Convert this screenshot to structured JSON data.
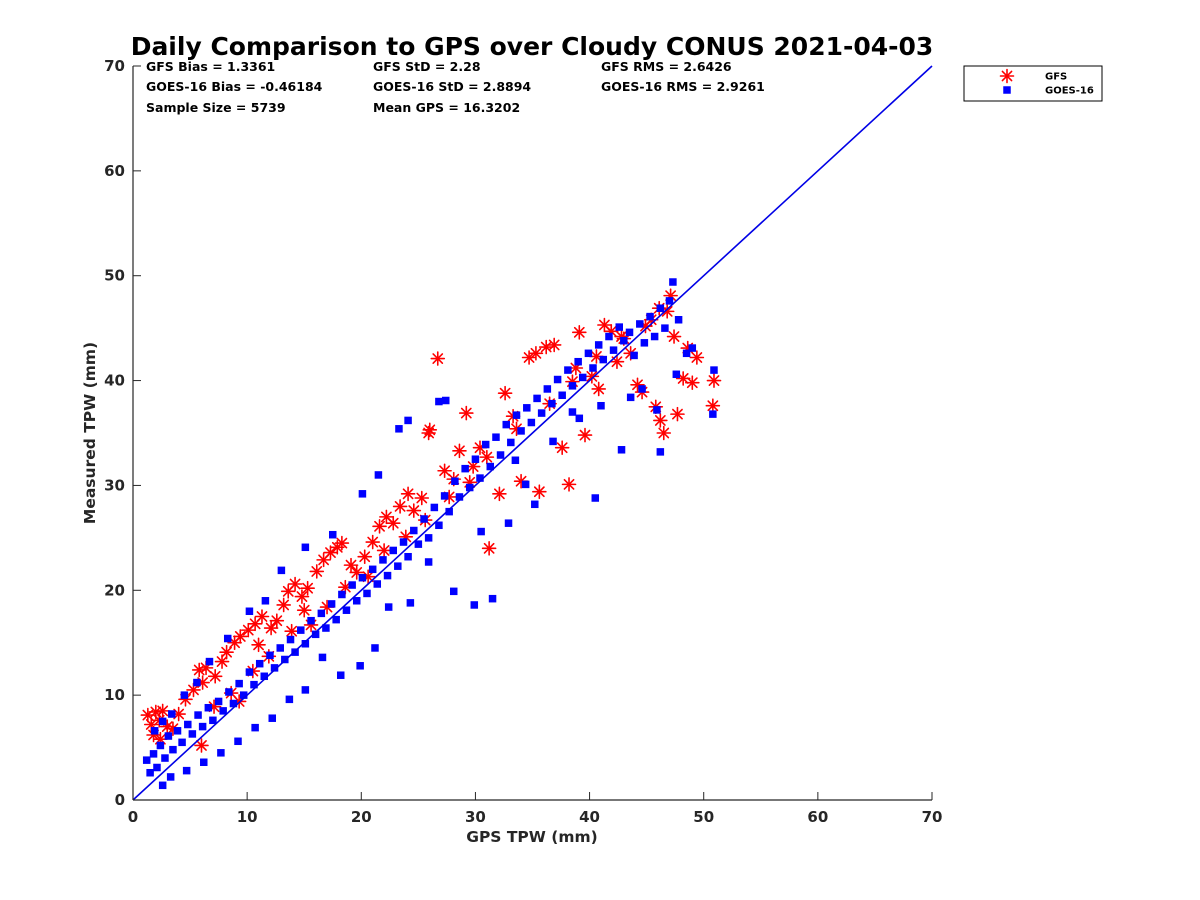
{
  "chart_data": {
    "type": "scatter",
    "title": "Daily Comparison to GPS over Cloudy CONUS 2021-04-03",
    "xlabel": "GPS TPW (mm)",
    "ylabel": "Measured TPW (mm)",
    "xlim": [
      0,
      70
    ],
    "ylim": [
      0,
      70
    ],
    "xticks": [
      "0",
      "10",
      "20",
      "30",
      "40",
      "50",
      "60",
      "70"
    ],
    "yticks": [
      "0",
      "10",
      "20",
      "30",
      "40",
      "50",
      "60",
      "70"
    ],
    "grid": false,
    "legend_position": "outside top-right",
    "stats": [
      [
        "GFS Bias = 1.3361",
        "GFS StD = 2.28",
        "GFS RMS = 2.6426"
      ],
      [
        "GOES-16 Bias = -0.46184",
        "GOES-16 StD = 2.8894",
        "GOES-16 RMS = 2.9261"
      ],
      [
        "Sample Size = 5739",
        "Mean GPS = 16.3202"
      ]
    ],
    "reference_line": {
      "x": [
        0,
        70
      ],
      "y": [
        0,
        70
      ],
      "color": "#0000e6"
    },
    "series": [
      {
        "name": "GFS",
        "marker": "asterisk",
        "color": "#ff0000",
        "points": [
          [
            1.3,
            8.1
          ],
          [
            1.6,
            7.2
          ],
          [
            2.0,
            8.4
          ],
          [
            2.3,
            7.6
          ],
          [
            2.6,
            8.5
          ],
          [
            1.8,
            6.2
          ],
          [
            2.4,
            5.8
          ],
          [
            3.0,
            7.0
          ],
          [
            3.5,
            6.8
          ],
          [
            4.0,
            8.2
          ],
          [
            4.6,
            9.6
          ],
          [
            5.3,
            10.5
          ],
          [
            5.8,
            12.4
          ],
          [
            6.4,
            12.6
          ],
          [
            6.1,
            11.2
          ],
          [
            7.2,
            11.8
          ],
          [
            7.8,
            13.2
          ],
          [
            8.2,
            14.1
          ],
          [
            8.9,
            15.0
          ],
          [
            9.4,
            15.6
          ],
          [
            10.1,
            16.2
          ],
          [
            10.7,
            16.8
          ],
          [
            11.3,
            17.5
          ],
          [
            11.0,
            14.8
          ],
          [
            12.1,
            16.4
          ],
          [
            12.6,
            17.1
          ],
          [
            13.2,
            18.6
          ],
          [
            13.6,
            19.9
          ],
          [
            14.2,
            20.6
          ],
          [
            14.8,
            19.4
          ],
          [
            15.3,
            20.2
          ],
          [
            15.0,
            18.1
          ],
          [
            16.1,
            21.8
          ],
          [
            16.7,
            22.9
          ],
          [
            17.3,
            23.6
          ],
          [
            17.9,
            24.1
          ],
          [
            18.3,
            24.5
          ],
          [
            19.1,
            22.4
          ],
          [
            19.6,
            21.7
          ],
          [
            20.3,
            23.2
          ],
          [
            21.0,
            24.6
          ],
          [
            21.6,
            26.1
          ],
          [
            22.2,
            27.0
          ],
          [
            22.8,
            26.4
          ],
          [
            23.4,
            28.0
          ],
          [
            24.1,
            29.2
          ],
          [
            24.6,
            27.6
          ],
          [
            25.3,
            28.8
          ],
          [
            26.0,
            35.3
          ],
          [
            25.9,
            35.0
          ],
          [
            26.7,
            42.1
          ],
          [
            27.3,
            31.4
          ],
          [
            28.1,
            30.6
          ],
          [
            28.6,
            33.3
          ],
          [
            29.2,
            36.9
          ],
          [
            29.8,
            31.8
          ],
          [
            30.4,
            33.6
          ],
          [
            31.2,
            24.0
          ],
          [
            32.1,
            29.2
          ],
          [
            32.6,
            38.8
          ],
          [
            33.3,
            36.6
          ],
          [
            34.0,
            30.4
          ],
          [
            34.7,
            42.2
          ],
          [
            35.3,
            42.6
          ],
          [
            35.6,
            29.4
          ],
          [
            36.2,
            43.2
          ],
          [
            36.9,
            43.4
          ],
          [
            37.6,
            33.6
          ],
          [
            38.2,
            30.1
          ],
          [
            38.8,
            41.2
          ],
          [
            39.1,
            44.6
          ],
          [
            39.6,
            34.8
          ],
          [
            40.2,
            40.4
          ],
          [
            40.8,
            39.2
          ],
          [
            41.3,
            45.3
          ],
          [
            41.9,
            44.7
          ],
          [
            42.4,
            41.8
          ],
          [
            43.0,
            44.0
          ],
          [
            43.6,
            42.6
          ],
          [
            44.2,
            39.6
          ],
          [
            44.9,
            45.2
          ],
          [
            45.4,
            45.8
          ],
          [
            45.8,
            37.5
          ],
          [
            46.2,
            36.2
          ],
          [
            46.5,
            35.0
          ],
          [
            46.8,
            46.6
          ],
          [
            47.1,
            48.1
          ],
          [
            47.4,
            44.2
          ],
          [
            47.7,
            36.8
          ],
          [
            48.2,
            40.2
          ],
          [
            48.6,
            43.1
          ],
          [
            49.0,
            39.8
          ],
          [
            50.9,
            40.0
          ],
          [
            50.8,
            37.6
          ],
          [
            49.4,
            42.2
          ],
          [
            44.6,
            38.9
          ],
          [
            6.0,
            5.2
          ],
          [
            7.1,
            8.9
          ],
          [
            8.6,
            10.2
          ],
          [
            9.3,
            9.4
          ],
          [
            10.5,
            12.3
          ],
          [
            11.9,
            13.7
          ],
          [
            13.9,
            16.1
          ],
          [
            15.6,
            16.7
          ],
          [
            17.0,
            18.4
          ],
          [
            18.6,
            20.3
          ],
          [
            20.6,
            21.3
          ],
          [
            22.0,
            23.8
          ],
          [
            23.9,
            25.1
          ],
          [
            25.6,
            26.7
          ],
          [
            27.7,
            28.9
          ],
          [
            29.5,
            30.3
          ],
          [
            31.0,
            32.7
          ],
          [
            33.6,
            35.4
          ],
          [
            36.5,
            37.8
          ],
          [
            38.5,
            39.9
          ],
          [
            40.6,
            42.3
          ],
          [
            42.8,
            44.2
          ],
          [
            46.1,
            46.9
          ]
        ]
      },
      {
        "name": "GOES-16",
        "marker": "square",
        "color": "#0000ff",
        "points": [
          [
            1.2,
            3.8
          ],
          [
            1.5,
            2.6
          ],
          [
            1.8,
            4.4
          ],
          [
            2.1,
            3.1
          ],
          [
            2.4,
            5.2
          ],
          [
            2.8,
            4.0
          ],
          [
            3.1,
            6.1
          ],
          [
            3.5,
            4.8
          ],
          [
            3.9,
            6.6
          ],
          [
            4.3,
            5.5
          ],
          [
            4.8,
            7.2
          ],
          [
            5.2,
            6.3
          ],
          [
            5.7,
            8.1
          ],
          [
            6.1,
            7.0
          ],
          [
            6.6,
            8.8
          ],
          [
            7.0,
            7.6
          ],
          [
            7.5,
            9.4
          ],
          [
            7.9,
            8.5
          ],
          [
            8.4,
            10.3
          ],
          [
            8.8,
            9.2
          ],
          [
            9.3,
            11.1
          ],
          [
            9.7,
            10.0
          ],
          [
            10.2,
            12.2
          ],
          [
            10.6,
            11.0
          ],
          [
            11.1,
            13.0
          ],
          [
            11.5,
            11.8
          ],
          [
            12.0,
            13.8
          ],
          [
            12.4,
            12.6
          ],
          [
            12.9,
            14.5
          ],
          [
            13.3,
            13.4
          ],
          [
            13.8,
            15.3
          ],
          [
            14.2,
            14.1
          ],
          [
            14.7,
            16.2
          ],
          [
            15.1,
            14.9
          ],
          [
            15.6,
            17.1
          ],
          [
            16.0,
            15.8
          ],
          [
            16.5,
            17.8
          ],
          [
            16.9,
            16.4
          ],
          [
            17.4,
            18.7
          ],
          [
            17.8,
            17.2
          ],
          [
            18.3,
            19.6
          ],
          [
            18.7,
            18.1
          ],
          [
            19.2,
            20.5
          ],
          [
            19.6,
            19.0
          ],
          [
            20.1,
            21.2
          ],
          [
            20.5,
            19.7
          ],
          [
            21.0,
            22.0
          ],
          [
            21.4,
            20.6
          ],
          [
            21.9,
            22.9
          ],
          [
            22.3,
            21.4
          ],
          [
            22.8,
            23.8
          ],
          [
            23.2,
            22.3
          ],
          [
            23.7,
            24.6
          ],
          [
            24.1,
            23.2
          ],
          [
            24.6,
            25.7
          ],
          [
            25.0,
            24.4
          ],
          [
            25.5,
            26.8
          ],
          [
            25.9,
            25.0
          ],
          [
            26.4,
            27.9
          ],
          [
            26.8,
            26.2
          ],
          [
            27.3,
            29.0
          ],
          [
            27.7,
            27.5
          ],
          [
            28.2,
            30.4
          ],
          [
            28.6,
            28.9
          ],
          [
            29.1,
            31.6
          ],
          [
            29.5,
            29.8
          ],
          [
            30.0,
            32.5
          ],
          [
            30.4,
            30.7
          ],
          [
            30.9,
            33.9
          ],
          [
            31.3,
            31.8
          ],
          [
            31.8,
            34.6
          ],
          [
            32.2,
            32.9
          ],
          [
            32.7,
            35.8
          ],
          [
            33.1,
            34.1
          ],
          [
            33.6,
            36.7
          ],
          [
            34.0,
            35.2
          ],
          [
            34.5,
            37.4
          ],
          [
            34.9,
            36.0
          ],
          [
            35.4,
            38.3
          ],
          [
            35.8,
            36.9
          ],
          [
            36.3,
            39.2
          ],
          [
            36.7,
            37.8
          ],
          [
            37.2,
            40.1
          ],
          [
            37.6,
            38.6
          ],
          [
            38.1,
            41.0
          ],
          [
            38.5,
            39.5
          ],
          [
            39.0,
            41.8
          ],
          [
            39.4,
            40.3
          ],
          [
            39.9,
            42.6
          ],
          [
            40.3,
            41.2
          ],
          [
            40.8,
            43.4
          ],
          [
            41.2,
            42.0
          ],
          [
            41.7,
            44.2
          ],
          [
            42.1,
            42.9
          ],
          [
            42.6,
            45.1
          ],
          [
            43.0,
            43.8
          ],
          [
            43.5,
            44.6
          ],
          [
            43.9,
            42.4
          ],
          [
            44.4,
            45.4
          ],
          [
            44.8,
            43.6
          ],
          [
            45.3,
            46.1
          ],
          [
            45.7,
            44.2
          ],
          [
            46.2,
            46.9
          ],
          [
            46.6,
            45.0
          ],
          [
            47.0,
            47.6
          ],
          [
            47.3,
            49.4
          ],
          [
            47.8,
            45.8
          ],
          [
            48.5,
            42.6
          ],
          [
            49.0,
            43.1
          ],
          [
            50.9,
            41.0
          ],
          [
            50.8,
            36.8
          ],
          [
            46.2,
            33.2
          ],
          [
            44.6,
            39.2
          ],
          [
            42.8,
            33.4
          ],
          [
            40.5,
            28.8
          ],
          [
            38.5,
            37.0
          ],
          [
            36.8,
            34.2
          ],
          [
            35.2,
            28.2
          ],
          [
            33.5,
            32.4
          ],
          [
            31.5,
            19.2
          ],
          [
            29.9,
            18.6
          ],
          [
            28.1,
            19.9
          ],
          [
            25.9,
            22.7
          ],
          [
            24.3,
            18.8
          ],
          [
            22.4,
            18.4
          ],
          [
            21.2,
            14.5
          ],
          [
            19.9,
            12.8
          ],
          [
            18.2,
            11.9
          ],
          [
            16.6,
            13.6
          ],
          [
            15.1,
            10.5
          ],
          [
            13.7,
            9.6
          ],
          [
            12.2,
            7.8
          ],
          [
            10.7,
            6.9
          ],
          [
            9.2,
            5.6
          ],
          [
            7.7,
            4.5
          ],
          [
            6.2,
            3.6
          ],
          [
            4.7,
            2.8
          ],
          [
            3.3,
            2.2
          ],
          [
            2.6,
            1.4
          ],
          [
            26.8,
            38.0
          ],
          [
            27.4,
            38.1
          ],
          [
            23.3,
            35.4
          ],
          [
            24.1,
            36.2
          ],
          [
            21.5,
            31.0
          ],
          [
            20.1,
            29.2
          ],
          [
            17.5,
            25.3
          ],
          [
            15.1,
            24.1
          ],
          [
            13.0,
            21.9
          ],
          [
            11.6,
            19.0
          ],
          [
            10.2,
            18.0
          ],
          [
            8.3,
            15.4
          ],
          [
            6.7,
            13.2
          ],
          [
            5.6,
            11.2
          ],
          [
            4.5,
            10.0
          ],
          [
            3.4,
            8.2
          ],
          [
            2.6,
            7.5
          ],
          [
            1.9,
            6.6
          ],
          [
            30.5,
            25.6
          ],
          [
            32.9,
            26.4
          ],
          [
            34.4,
            30.1
          ],
          [
            39.1,
            36.4
          ],
          [
            41.0,
            37.6
          ],
          [
            43.6,
            38.4
          ],
          [
            45.9,
            37.2
          ],
          [
            47.6,
            40.6
          ]
        ]
      }
    ]
  }
}
